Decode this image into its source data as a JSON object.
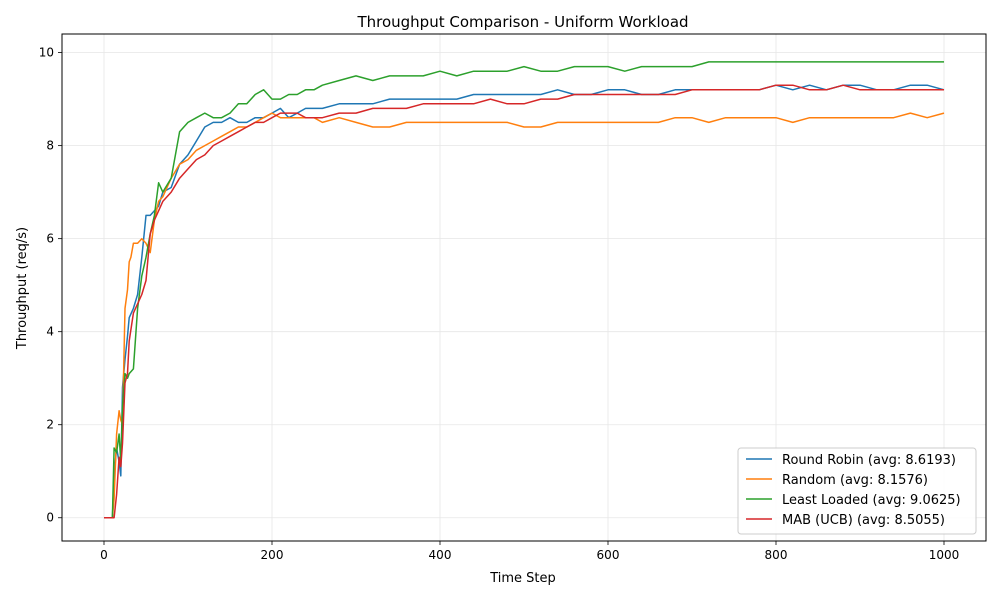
{
  "chart_data": {
    "type": "line",
    "title": "Throughput Comparison - Uniform Workload",
    "xlabel": "Time Step",
    "ylabel": "Throughput (req/s)",
    "xlim": [
      -50,
      1050
    ],
    "ylim": [
      -0.5,
      10.4
    ],
    "xticks": [
      0,
      200,
      400,
      600,
      800,
      1000
    ],
    "yticks": [
      0,
      2,
      4,
      6,
      8,
      10
    ],
    "grid": true,
    "legend_position": "lower-right",
    "series": [
      {
        "name": "Round Robin (avg: 8.6193)",
        "color": "#1f77b4",
        "x": [
          0,
          10,
          12,
          15,
          18,
          20,
          22,
          25,
          28,
          30,
          35,
          40,
          45,
          50,
          55,
          60,
          65,
          70,
          80,
          90,
          100,
          110,
          120,
          130,
          140,
          150,
          160,
          170,
          180,
          190,
          200,
          210,
          220,
          230,
          240,
          250,
          260,
          280,
          300,
          320,
          340,
          360,
          380,
          400,
          420,
          440,
          460,
          480,
          500,
          520,
          540,
          560,
          580,
          600,
          620,
          640,
          660,
          680,
          700,
          720,
          740,
          760,
          780,
          800,
          820,
          840,
          860,
          880,
          900,
          920,
          940,
          960,
          980,
          1000
        ],
        "values": [
          0,
          0,
          0.9,
          1.5,
          1.2,
          0.9,
          2.8,
          3.4,
          3.9,
          4.3,
          4.5,
          4.8,
          5.6,
          6.5,
          6.5,
          6.6,
          6.7,
          7.0,
          7.1,
          7.6,
          7.8,
          8.1,
          8.4,
          8.5,
          8.5,
          8.6,
          8.5,
          8.5,
          8.6,
          8.6,
          8.7,
          8.8,
          8.6,
          8.7,
          8.8,
          8.8,
          8.8,
          8.9,
          8.9,
          8.9,
          9.0,
          9.0,
          9.0,
          9.0,
          9.0,
          9.1,
          9.1,
          9.1,
          9.1,
          9.1,
          9.2,
          9.1,
          9.1,
          9.2,
          9.2,
          9.1,
          9.1,
          9.2,
          9.2,
          9.2,
          9.2,
          9.2,
          9.2,
          9.3,
          9.2,
          9.3,
          9.2,
          9.3,
          9.3,
          9.2,
          9.2,
          9.3,
          9.3,
          9.2
        ]
      },
      {
        "name": "Random (avg: 8.1576)",
        "color": "#ff7f0e",
        "x": [
          0,
          10,
          12,
          15,
          18,
          20,
          22,
          25,
          28,
          30,
          32,
          35,
          40,
          45,
          50,
          55,
          60,
          65,
          70,
          80,
          90,
          100,
          110,
          120,
          130,
          140,
          150,
          160,
          170,
          180,
          190,
          200,
          210,
          220,
          230,
          240,
          250,
          260,
          280,
          300,
          320,
          340,
          360,
          380,
          400,
          420,
          440,
          460,
          480,
          500,
          520,
          540,
          560,
          580,
          600,
          620,
          640,
          660,
          680,
          700,
          720,
          740,
          760,
          780,
          800,
          820,
          840,
          860,
          880,
          900,
          920,
          940,
          960,
          980,
          1000
        ],
        "values": [
          0,
          0,
          0.4,
          1.8,
          2.3,
          2.1,
          2.0,
          4.5,
          4.9,
          5.5,
          5.6,
          5.9,
          5.9,
          6.0,
          5.9,
          5.7,
          6.4,
          6.8,
          6.9,
          7.3,
          7.6,
          7.7,
          7.9,
          8.0,
          8.1,
          8.2,
          8.3,
          8.4,
          8.4,
          8.5,
          8.6,
          8.7,
          8.6,
          8.6,
          8.6,
          8.6,
          8.6,
          8.5,
          8.6,
          8.5,
          8.4,
          8.4,
          8.5,
          8.5,
          8.5,
          8.5,
          8.5,
          8.5,
          8.5,
          8.4,
          8.4,
          8.5,
          8.5,
          8.5,
          8.5,
          8.5,
          8.5,
          8.5,
          8.6,
          8.6,
          8.5,
          8.6,
          8.6,
          8.6,
          8.6,
          8.5,
          8.6,
          8.6,
          8.6,
          8.6,
          8.6,
          8.6,
          8.7,
          8.6,
          8.7
        ]
      },
      {
        "name": "Least Loaded (avg: 9.0625)",
        "color": "#2ca02c",
        "x": [
          0,
          10,
          12,
          15,
          18,
          20,
          22,
          25,
          28,
          30,
          35,
          40,
          45,
          50,
          55,
          60,
          65,
          70,
          80,
          90,
          100,
          110,
          120,
          130,
          140,
          150,
          160,
          170,
          180,
          190,
          200,
          210,
          220,
          230,
          240,
          250,
          260,
          280,
          300,
          320,
          340,
          360,
          380,
          400,
          420,
          440,
          460,
          480,
          500,
          520,
          540,
          560,
          580,
          600,
          620,
          640,
          660,
          680,
          700,
          720,
          740,
          760,
          780,
          800,
          820,
          840,
          860,
          880,
          900,
          920,
          940,
          960,
          980,
          1000
        ],
        "values": [
          0,
          0,
          1.5,
          1.4,
          1.8,
          1.2,
          2.4,
          3.1,
          3.0,
          3.1,
          3.2,
          4.5,
          5.2,
          5.6,
          6.1,
          6.5,
          7.2,
          7.0,
          7.3,
          8.3,
          8.5,
          8.6,
          8.7,
          8.6,
          8.6,
          8.7,
          8.9,
          8.9,
          9.1,
          9.2,
          9.0,
          9.0,
          9.1,
          9.1,
          9.2,
          9.2,
          9.3,
          9.4,
          9.5,
          9.4,
          9.5,
          9.5,
          9.5,
          9.6,
          9.5,
          9.6,
          9.6,
          9.6,
          9.7,
          9.6,
          9.6,
          9.7,
          9.7,
          9.7,
          9.6,
          9.7,
          9.7,
          9.7,
          9.7,
          9.8,
          9.8,
          9.8,
          9.8,
          9.8,
          9.8,
          9.8,
          9.8,
          9.8,
          9.8,
          9.8,
          9.8,
          9.8,
          9.8,
          9.8
        ]
      },
      {
        "name": "MAB (UCB) (avg: 8.5055)",
        "color": "#d62728",
        "x": [
          0,
          10,
          12,
          15,
          18,
          20,
          22,
          25,
          28,
          30,
          35,
          40,
          45,
          50,
          55,
          60,
          65,
          70,
          80,
          90,
          100,
          110,
          120,
          130,
          140,
          150,
          160,
          170,
          180,
          190,
          200,
          210,
          220,
          230,
          240,
          250,
          260,
          280,
          300,
          320,
          340,
          360,
          380,
          400,
          420,
          440,
          460,
          480,
          500,
          520,
          540,
          560,
          580,
          600,
          620,
          640,
          660,
          680,
          700,
          720,
          740,
          760,
          780,
          800,
          820,
          840,
          860,
          880,
          900,
          920,
          940,
          960,
          980,
          1000
        ],
        "values": [
          0,
          0,
          0,
          0.5,
          1.3,
          1.1,
          1.6,
          2.9,
          3.1,
          3.8,
          4.4,
          4.6,
          4.8,
          5.1,
          6.1,
          6.4,
          6.6,
          6.8,
          7.0,
          7.3,
          7.5,
          7.7,
          7.8,
          8.0,
          8.1,
          8.2,
          8.3,
          8.4,
          8.5,
          8.5,
          8.6,
          8.7,
          8.7,
          8.7,
          8.6,
          8.6,
          8.6,
          8.7,
          8.7,
          8.8,
          8.8,
          8.8,
          8.9,
          8.9,
          8.9,
          8.9,
          9.0,
          8.9,
          8.9,
          9.0,
          9.0,
          9.1,
          9.1,
          9.1,
          9.1,
          9.1,
          9.1,
          9.1,
          9.2,
          9.2,
          9.2,
          9.2,
          9.2,
          9.3,
          9.3,
          9.2,
          9.2,
          9.3,
          9.2,
          9.2,
          9.2,
          9.2,
          9.2,
          9.2
        ]
      }
    ]
  }
}
